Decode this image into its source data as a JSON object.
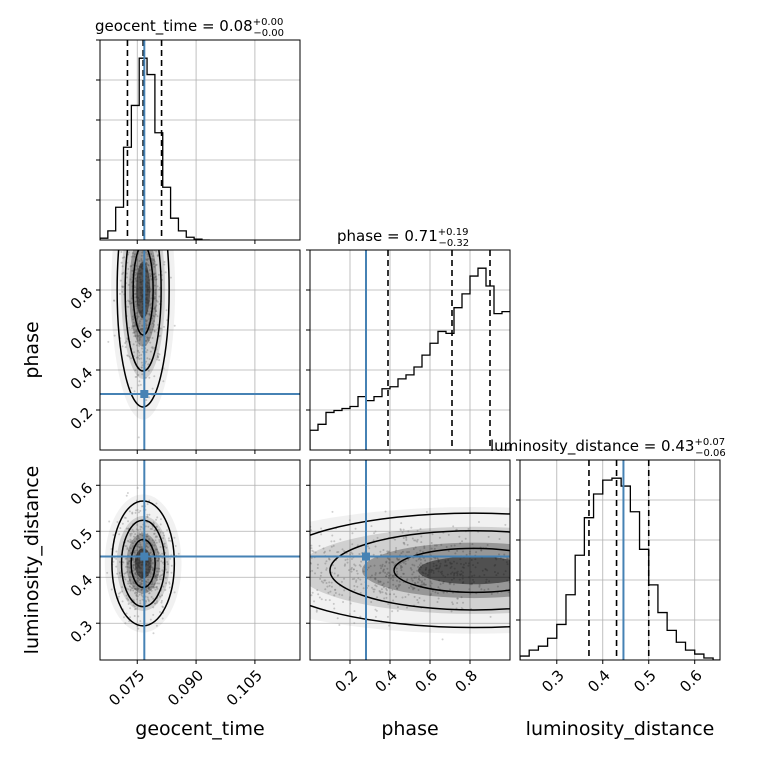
{
  "chart_data": {
    "type": "corner",
    "parameters": [
      "geocent_time",
      "phase",
      "luminosity_distance"
    ],
    "titles": [
      {
        "param": "geocent_time",
        "label": "geocent_time",
        "median": "0.08",
        "plus": "+0.00",
        "minus": "−0.00"
      },
      {
        "param": "phase",
        "label": "phase",
        "median": "0.71",
        "plus": "+0.19",
        "minus": "−0.32"
      },
      {
        "param": "luminosity_distance",
        "label": "luminosity_distance",
        "median": "0.43",
        "plus": "+0.07",
        "minus": "−0.06"
      }
    ],
    "ranges": {
      "geocent_time": [
        0.0655,
        0.1165
      ],
      "phase": [
        0.0,
        1.0
      ],
      "luminosity_distance": [
        0.22,
        0.655
      ]
    },
    "ticks": {
      "geocent_time": {
        "values": [
          0.075,
          0.09,
          0.105
        ],
        "labels": [
          "0.075",
          "0.090",
          "0.105"
        ]
      },
      "phase": {
        "values": [
          0.2,
          0.4,
          0.6,
          0.8
        ],
        "labels": [
          "0.2",
          "0.4",
          "0.6",
          "0.8"
        ]
      },
      "luminosity_distance_x": {
        "values": [
          0.3,
          0.4,
          0.5,
          0.6
        ],
        "labels": [
          "0.3",
          "0.4",
          "0.5",
          "0.6"
        ]
      },
      "luminosity_distance_y": {
        "values": [
          0.3,
          0.4,
          0.5,
          0.6
        ],
        "labels": [
          "0.3",
          "0.4",
          "0.5",
          "0.6"
        ]
      }
    },
    "truths": {
      "geocent_time": 0.0768,
      "phase": 0.28,
      "luminosity_distance": 0.445
    },
    "quantiles": {
      "geocent_time": [
        0.0725,
        0.0765,
        0.0812
      ],
      "phase": [
        0.39,
        0.71,
        0.9
      ],
      "luminosity_distance": [
        0.37,
        0.43,
        0.5
      ]
    },
    "histograms": {
      "geocent_time": {
        "edges": [
          0.0655,
          0.0675,
          0.0695,
          0.0715,
          0.0735,
          0.0755,
          0.0775,
          0.0795,
          0.0815,
          0.0835,
          0.0855,
          0.0875,
          0.0895,
          0.0915,
          0.0935
        ],
        "counts": [
          0.01,
          0.05,
          0.18,
          0.51,
          0.74,
          1.0,
          0.91,
          0.59,
          0.29,
          0.12,
          0.05,
          0.015,
          0.005,
          0.0
        ]
      },
      "phase": {
        "edges": [
          0.0,
          0.04,
          0.08,
          0.12,
          0.16,
          0.2,
          0.24,
          0.28,
          0.32,
          0.36,
          0.4,
          0.44,
          0.48,
          0.52,
          0.56,
          0.6,
          0.64,
          0.68,
          0.72,
          0.76,
          0.8,
          0.84,
          0.88,
          0.92,
          0.96,
          1.0
        ],
        "counts": [
          0.1,
          0.13,
          0.19,
          0.2,
          0.21,
          0.22,
          0.27,
          0.25,
          0.27,
          0.31,
          0.32,
          0.36,
          0.38,
          0.42,
          0.48,
          0.54,
          0.6,
          0.59,
          0.72,
          0.79,
          0.88,
          0.92,
          0.83,
          0.69,
          0.7
        ]
      },
      "luminosity_distance": {
        "edges": [
          0.22,
          0.24,
          0.26,
          0.28,
          0.3,
          0.32,
          0.34,
          0.36,
          0.38,
          0.4,
          0.42,
          0.44,
          0.46,
          0.48,
          0.5,
          0.52,
          0.54,
          0.56,
          0.58,
          0.6,
          0.62,
          0.64,
          0.655
        ],
        "counts": [
          0.02,
          0.05,
          0.07,
          0.11,
          0.18,
          0.33,
          0.53,
          0.72,
          0.84,
          0.91,
          0.92,
          0.88,
          0.75,
          0.56,
          0.38,
          0.24,
          0.15,
          0.09,
          0.05,
          0.03,
          0.01,
          0.0
        ]
      }
    },
    "panels_2d": [
      {
        "x": "geocent_time",
        "y": "phase",
        "density_center": [
          0.0765,
          0.8
        ]
      },
      {
        "x": "geocent_time",
        "y": "luminosity_distance",
        "density_center": [
          0.0765,
          0.43
        ]
      },
      {
        "x": "phase",
        "y": "luminosity_distance",
        "density_center": [
          0.82,
          0.415
        ]
      }
    ],
    "colors": {
      "truth": "#4682b4",
      "hist": "#000000",
      "quantile": "#000000",
      "grid": "#b0b0b0"
    },
    "grid": true
  }
}
